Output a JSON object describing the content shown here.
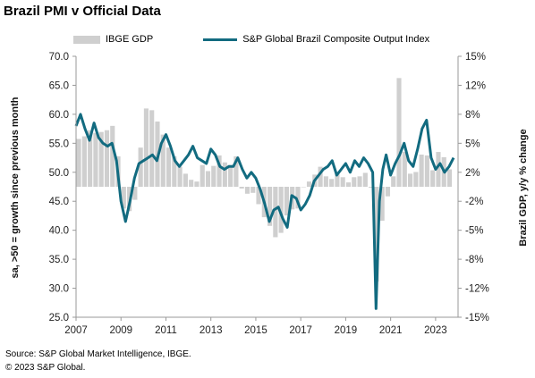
{
  "title": "Brazil PMI v Official Data",
  "source_line1": "Source: S&P Global Market Intelligence, IBGE.",
  "source_line2": "© 2023 S&P Global.",
  "chart_data": {
    "type": "bar+line",
    "title": "Brazil PMI v Official Data",
    "ylabel_left": "sa, >50 = growth since previous month",
    "ylabel_right": "Brazil GDP, y/y % change",
    "xlim": [
      2007,
      2024
    ],
    "ylim_left": [
      25,
      70
    ],
    "ylim_right": [
      -15,
      15
    ],
    "x_ticks": [
      "2007",
      "2009",
      "2011",
      "2013",
      "2015",
      "2017",
      "2019",
      "2021",
      "2023"
    ],
    "y_left_ticks": [
      "70.0",
      "65.0",
      "60.0",
      "55.0",
      "50.0",
      "45.0",
      "40.0",
      "35.0",
      "30.0",
      "25.0"
    ],
    "y_right_ticks": [
      "15%",
      "12%",
      "8%",
      "5%",
      "2%",
      "-2%",
      "-5%",
      "-8%",
      "-12%",
      "-15%"
    ],
    "colors": {
      "bar": "#cfcfcf",
      "line": "#126b80"
    },
    "legend_position": "top",
    "series": [
      {
        "name": "IBGE GDP",
        "type": "bar",
        "axis": "right",
        "x": [
          2007.0,
          2007.25,
          2007.5,
          2007.75,
          2008.0,
          2008.25,
          2008.5,
          2008.75,
          2009.0,
          2009.25,
          2009.5,
          2009.75,
          2010.0,
          2010.25,
          2010.5,
          2010.75,
          2011.0,
          2011.25,
          2011.5,
          2011.75,
          2012.0,
          2012.25,
          2012.5,
          2012.75,
          2013.0,
          2013.25,
          2013.5,
          2013.75,
          2014.0,
          2014.25,
          2014.5,
          2014.75,
          2015.0,
          2015.25,
          2015.5,
          2015.75,
          2016.0,
          2016.25,
          2016.5,
          2016.75,
          2017.0,
          2017.25,
          2017.5,
          2017.75,
          2018.0,
          2018.25,
          2018.5,
          2018.75,
          2019.0,
          2019.25,
          2019.5,
          2019.75,
          2020.0,
          2020.25,
          2020.5,
          2020.75,
          2021.0,
          2021.25,
          2021.5,
          2021.75,
          2022.0,
          2022.25,
          2022.5,
          2022.75,
          2023.0,
          2023.25,
          2023.5
        ],
        "values": [
          5.5,
          5.8,
          6.5,
          6.2,
          6.3,
          6.5,
          7.0,
          3.5,
          -2.5,
          -2.8,
          -1.5,
          4.5,
          9.0,
          8.8,
          7.5,
          6.0,
          4.5,
          3.5,
          2.3,
          1.5,
          0.8,
          0.6,
          2.5,
          1.8,
          2.4,
          3.6,
          2.8,
          2.5,
          3.5,
          -0.2,
          -0.8,
          -0.7,
          -2.0,
          -3.5,
          -4.5,
          -5.8,
          -5.3,
          -3.3,
          -2.6,
          -2.5,
          0.0,
          0.6,
          1.4,
          2.3,
          1.2,
          0.9,
          1.5,
          1.1,
          0.5,
          1.1,
          1.2,
          1.6,
          -0.1,
          -10.9,
          -3.9,
          -1.1,
          1.2,
          12.5,
          4.0,
          1.5,
          1.7,
          3.7,
          3.6,
          1.9,
          4.0,
          3.4,
          2.0
        ]
      },
      {
        "name": "S&P Global Brazil Composite Output Index",
        "type": "line",
        "axis": "left",
        "x": [
          2007.0,
          2007.2,
          2007.4,
          2007.6,
          2007.8,
          2008.0,
          2008.2,
          2008.4,
          2008.6,
          2008.8,
          2009.0,
          2009.2,
          2009.4,
          2009.6,
          2009.8,
          2010.0,
          2010.2,
          2010.4,
          2010.6,
          2010.8,
          2011.0,
          2011.2,
          2011.4,
          2011.6,
          2011.8,
          2012.0,
          2012.2,
          2012.4,
          2012.6,
          2012.8,
          2013.0,
          2013.2,
          2013.4,
          2013.6,
          2013.8,
          2014.0,
          2014.2,
          2014.4,
          2014.6,
          2014.8,
          2015.0,
          2015.2,
          2015.4,
          2015.6,
          2015.8,
          2016.0,
          2016.2,
          2016.4,
          2016.6,
          2016.8,
          2017.0,
          2017.2,
          2017.4,
          2017.6,
          2017.8,
          2018.0,
          2018.2,
          2018.4,
          2018.6,
          2018.8,
          2019.0,
          2019.2,
          2019.4,
          2019.6,
          2019.8,
          2020.0,
          2020.2,
          2020.35,
          2020.5,
          2020.65,
          2020.8,
          2021.0,
          2021.2,
          2021.4,
          2021.6,
          2021.8,
          2022.0,
          2022.2,
          2022.4,
          2022.6,
          2022.8,
          2023.0,
          2023.2,
          2023.4,
          2023.6,
          2023.8
        ],
        "values": [
          58.0,
          60.0,
          57.5,
          55.5,
          58.5,
          56.0,
          55.0,
          54.5,
          55.0,
          52.0,
          45.0,
          41.5,
          45.0,
          49.0,
          51.5,
          52.0,
          52.5,
          53.0,
          52.0,
          55.0,
          56.5,
          54.5,
          52.0,
          51.0,
          52.0,
          53.0,
          54.5,
          52.5,
          52.0,
          51.5,
          54.0,
          53.0,
          51.0,
          50.5,
          51.0,
          51.0,
          52.5,
          50.5,
          49.0,
          50.0,
          49.0,
          47.0,
          44.5,
          41.5,
          43.5,
          44.0,
          42.0,
          40.5,
          46.0,
          45.5,
          43.5,
          44.5,
          46.0,
          48.5,
          49.5,
          50.5,
          51.0,
          52.0,
          49.5,
          50.5,
          51.5,
          50.0,
          52.0,
          51.0,
          52.5,
          51.5,
          50.0,
          26.5,
          45.0,
          50.5,
          53.0,
          49.5,
          51.5,
          53.0,
          55.0,
          52.0,
          51.0,
          54.0,
          57.5,
          59.0,
          52.5,
          50.5,
          51.5,
          50.0,
          51.0,
          52.5
        ]
      }
    ]
  }
}
